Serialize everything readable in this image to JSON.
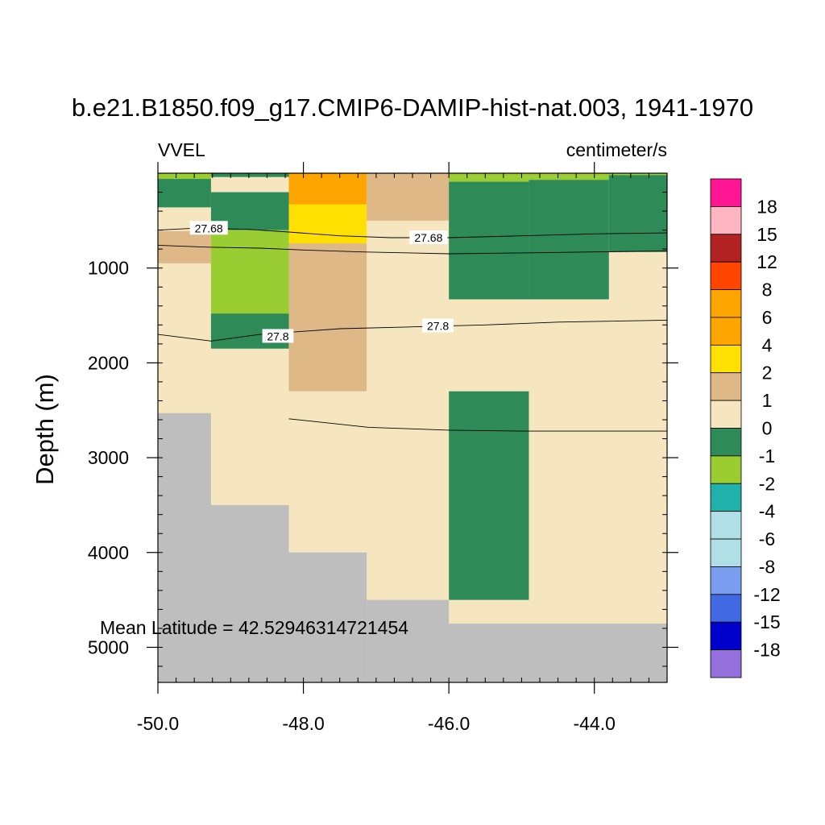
{
  "chart_data": {
    "type": "heatmap",
    "title": "b.e21.B1850.f09_g17.CMIP6-DAMIP-hist-nat.003, 1941-1970",
    "left_label": "VVEL",
    "right_label": "centimeter/s",
    "xlabel": "",
    "ylabel": "Depth (m)",
    "xlim": [
      -50.0,
      -43.0
    ],
    "ylim": [
      5370,
      0
    ],
    "x_ticks": [
      -50.0,
      -48.0,
      -46.0,
      -44.0
    ],
    "x_tick_labels": [
      "-50.0",
      "-48.0",
      "-46.0",
      "-44.0"
    ],
    "x_minor_step": 0.25,
    "y_ticks": [
      1000,
      2000,
      3000,
      4000,
      5000
    ],
    "y_tick_labels": [
      "1000",
      "2000",
      "3000",
      "4000",
      "5000"
    ],
    "y_minor_step": 200,
    "annotation": "Mean Latitude = 42.52946314721454",
    "missing_color": "#bebebe",
    "colorbar": {
      "labels": [
        "18",
        "15",
        "12",
        "8",
        "6",
        "4",
        "2",
        "1",
        "0",
        "-1",
        "-2",
        "-4",
        "-6",
        "-8",
        "-12",
        "-15",
        "-18"
      ],
      "colors": [
        "#ff1493",
        "#ffb6c1",
        "#b22222",
        "#ff4500",
        "#ffa500",
        "#ffa500",
        "#ffe000",
        "#deb887",
        "#f5e6c0",
        "#2e8b57",
        "#9acd32",
        "#20b2aa",
        "#b0e0e6",
        "#b0e0e6",
        "#7b9ef0",
        "#4169e1",
        "#0000cd",
        "#9370db"
      ]
    },
    "cells": [
      {
        "x0": -50.0,
        "x1": -43.0,
        "d0": 0,
        "d1": 5370,
        "v": 0.5
      },
      {
        "x0": -50.0,
        "x1": -49.27,
        "d0": 0,
        "d1": 60,
        "v": -1.5
      },
      {
        "x0": -49.27,
        "x1": -48.2,
        "d0": 0,
        "d1": 40,
        "v": -0.5
      },
      {
        "x0": -46.0,
        "x1": -43.0,
        "d0": 0,
        "d1": 40,
        "v": -1.5
      },
      {
        "x0": -46.0,
        "x1": -44.9,
        "d0": 40,
        "d1": 90,
        "v": -1.5
      },
      {
        "x0": -44.9,
        "x1": -43.8,
        "d0": 40,
        "d1": 70,
        "v": -1.5
      },
      {
        "x0": -50.0,
        "x1": -49.27,
        "d0": 60,
        "d1": 360,
        "v": -0.5
      },
      {
        "x0": -50.0,
        "x1": -49.27,
        "d0": 610,
        "d1": 950,
        "v": 1.5
      },
      {
        "x0": -49.27,
        "x1": -48.2,
        "d0": 200,
        "d1": 600,
        "v": -0.5
      },
      {
        "x0": -49.27,
        "x1": -48.2,
        "d0": 600,
        "d1": 1480,
        "v": -1.5
      },
      {
        "x0": -49.27,
        "x1": -48.2,
        "d0": 1480,
        "d1": 1850,
        "v": -0.5
      },
      {
        "x0": -48.2,
        "x1": -47.13,
        "d0": 0,
        "d1": 330,
        "v": 5
      },
      {
        "x0": -48.2,
        "x1": -47.13,
        "d0": 330,
        "d1": 740,
        "v": 3
      },
      {
        "x0": -48.2,
        "x1": -47.13,
        "d0": 740,
        "d1": 2300,
        "v": 1.5
      },
      {
        "x0": -47.13,
        "x1": -46.0,
        "d0": 0,
        "d1": 500,
        "v": 1.5
      },
      {
        "x0": -46.0,
        "x1": -44.9,
        "d0": 90,
        "d1": 1330,
        "v": -0.5
      },
      {
        "x0": -44.9,
        "x1": -43.8,
        "d0": 70,
        "d1": 1330,
        "v": -0.5
      },
      {
        "x0": -43.8,
        "x1": -43.0,
        "d0": 20,
        "d1": 830,
        "v": -0.5
      },
      {
        "x0": -46.0,
        "x1": -44.9,
        "d0": 2300,
        "d1": 4500,
        "v": -0.5
      }
    ],
    "topography": [
      {
        "x0": -50.0,
        "x1": -49.27,
        "depth": 2530
      },
      {
        "x0": -49.27,
        "x1": -48.2,
        "depth": 3500
      },
      {
        "x0": -48.2,
        "x1": -47.13,
        "depth": 4000
      },
      {
        "x0": -47.13,
        "x1": -46.0,
        "depth": 4500
      },
      {
        "x0": -46.0,
        "x1": -44.9,
        "depth": 4750
      },
      {
        "x0": -44.9,
        "x1": -43.0,
        "depth": 4750
      }
    ],
    "contours": [
      {
        "label": "27.68",
        "points": [
          [
            -50.0,
            600
          ],
          [
            -49.5,
            580
          ],
          [
            -48.8,
            590
          ],
          [
            -48.2,
            620
          ],
          [
            -47.5,
            660
          ],
          [
            -46.8,
            680
          ],
          [
            -46.0,
            680
          ],
          [
            -45.0,
            660
          ],
          [
            -44.0,
            640
          ],
          [
            -43.0,
            630
          ]
        ],
        "label_positions": [
          [
            -49.3,
            580
          ],
          [
            -46.28,
            680
          ]
        ]
      },
      {
        "label": "",
        "points": [
          [
            -50.0,
            760
          ],
          [
            -49.3,
            780
          ],
          [
            -48.6,
            790
          ],
          [
            -48.0,
            810
          ],
          [
            -47.2,
            830
          ],
          [
            -46.0,
            850
          ],
          [
            -45.0,
            840
          ],
          [
            -44.0,
            830
          ],
          [
            -43.0,
            820
          ]
        ],
        "label_positions": []
      },
      {
        "label": "27.8",
        "points": [
          [
            -50.0,
            1700
          ],
          [
            -49.27,
            1770
          ],
          [
            -48.6,
            1700
          ],
          [
            -47.5,
            1640
          ],
          [
            -46.5,
            1620
          ],
          [
            -45.5,
            1600
          ],
          [
            -44.5,
            1570
          ],
          [
            -43.0,
            1550
          ]
        ],
        "label_positions": [
          [
            -48.35,
            1720
          ],
          [
            -46.15,
            1610
          ]
        ]
      },
      {
        "label": "",
        "points": [
          [
            -48.2,
            2590
          ],
          [
            -47.1,
            2680
          ],
          [
            -46.0,
            2710
          ],
          [
            -45.0,
            2720
          ],
          [
            -44.0,
            2720
          ],
          [
            -43.0,
            2720
          ]
        ],
        "label_positions": []
      }
    ]
  }
}
